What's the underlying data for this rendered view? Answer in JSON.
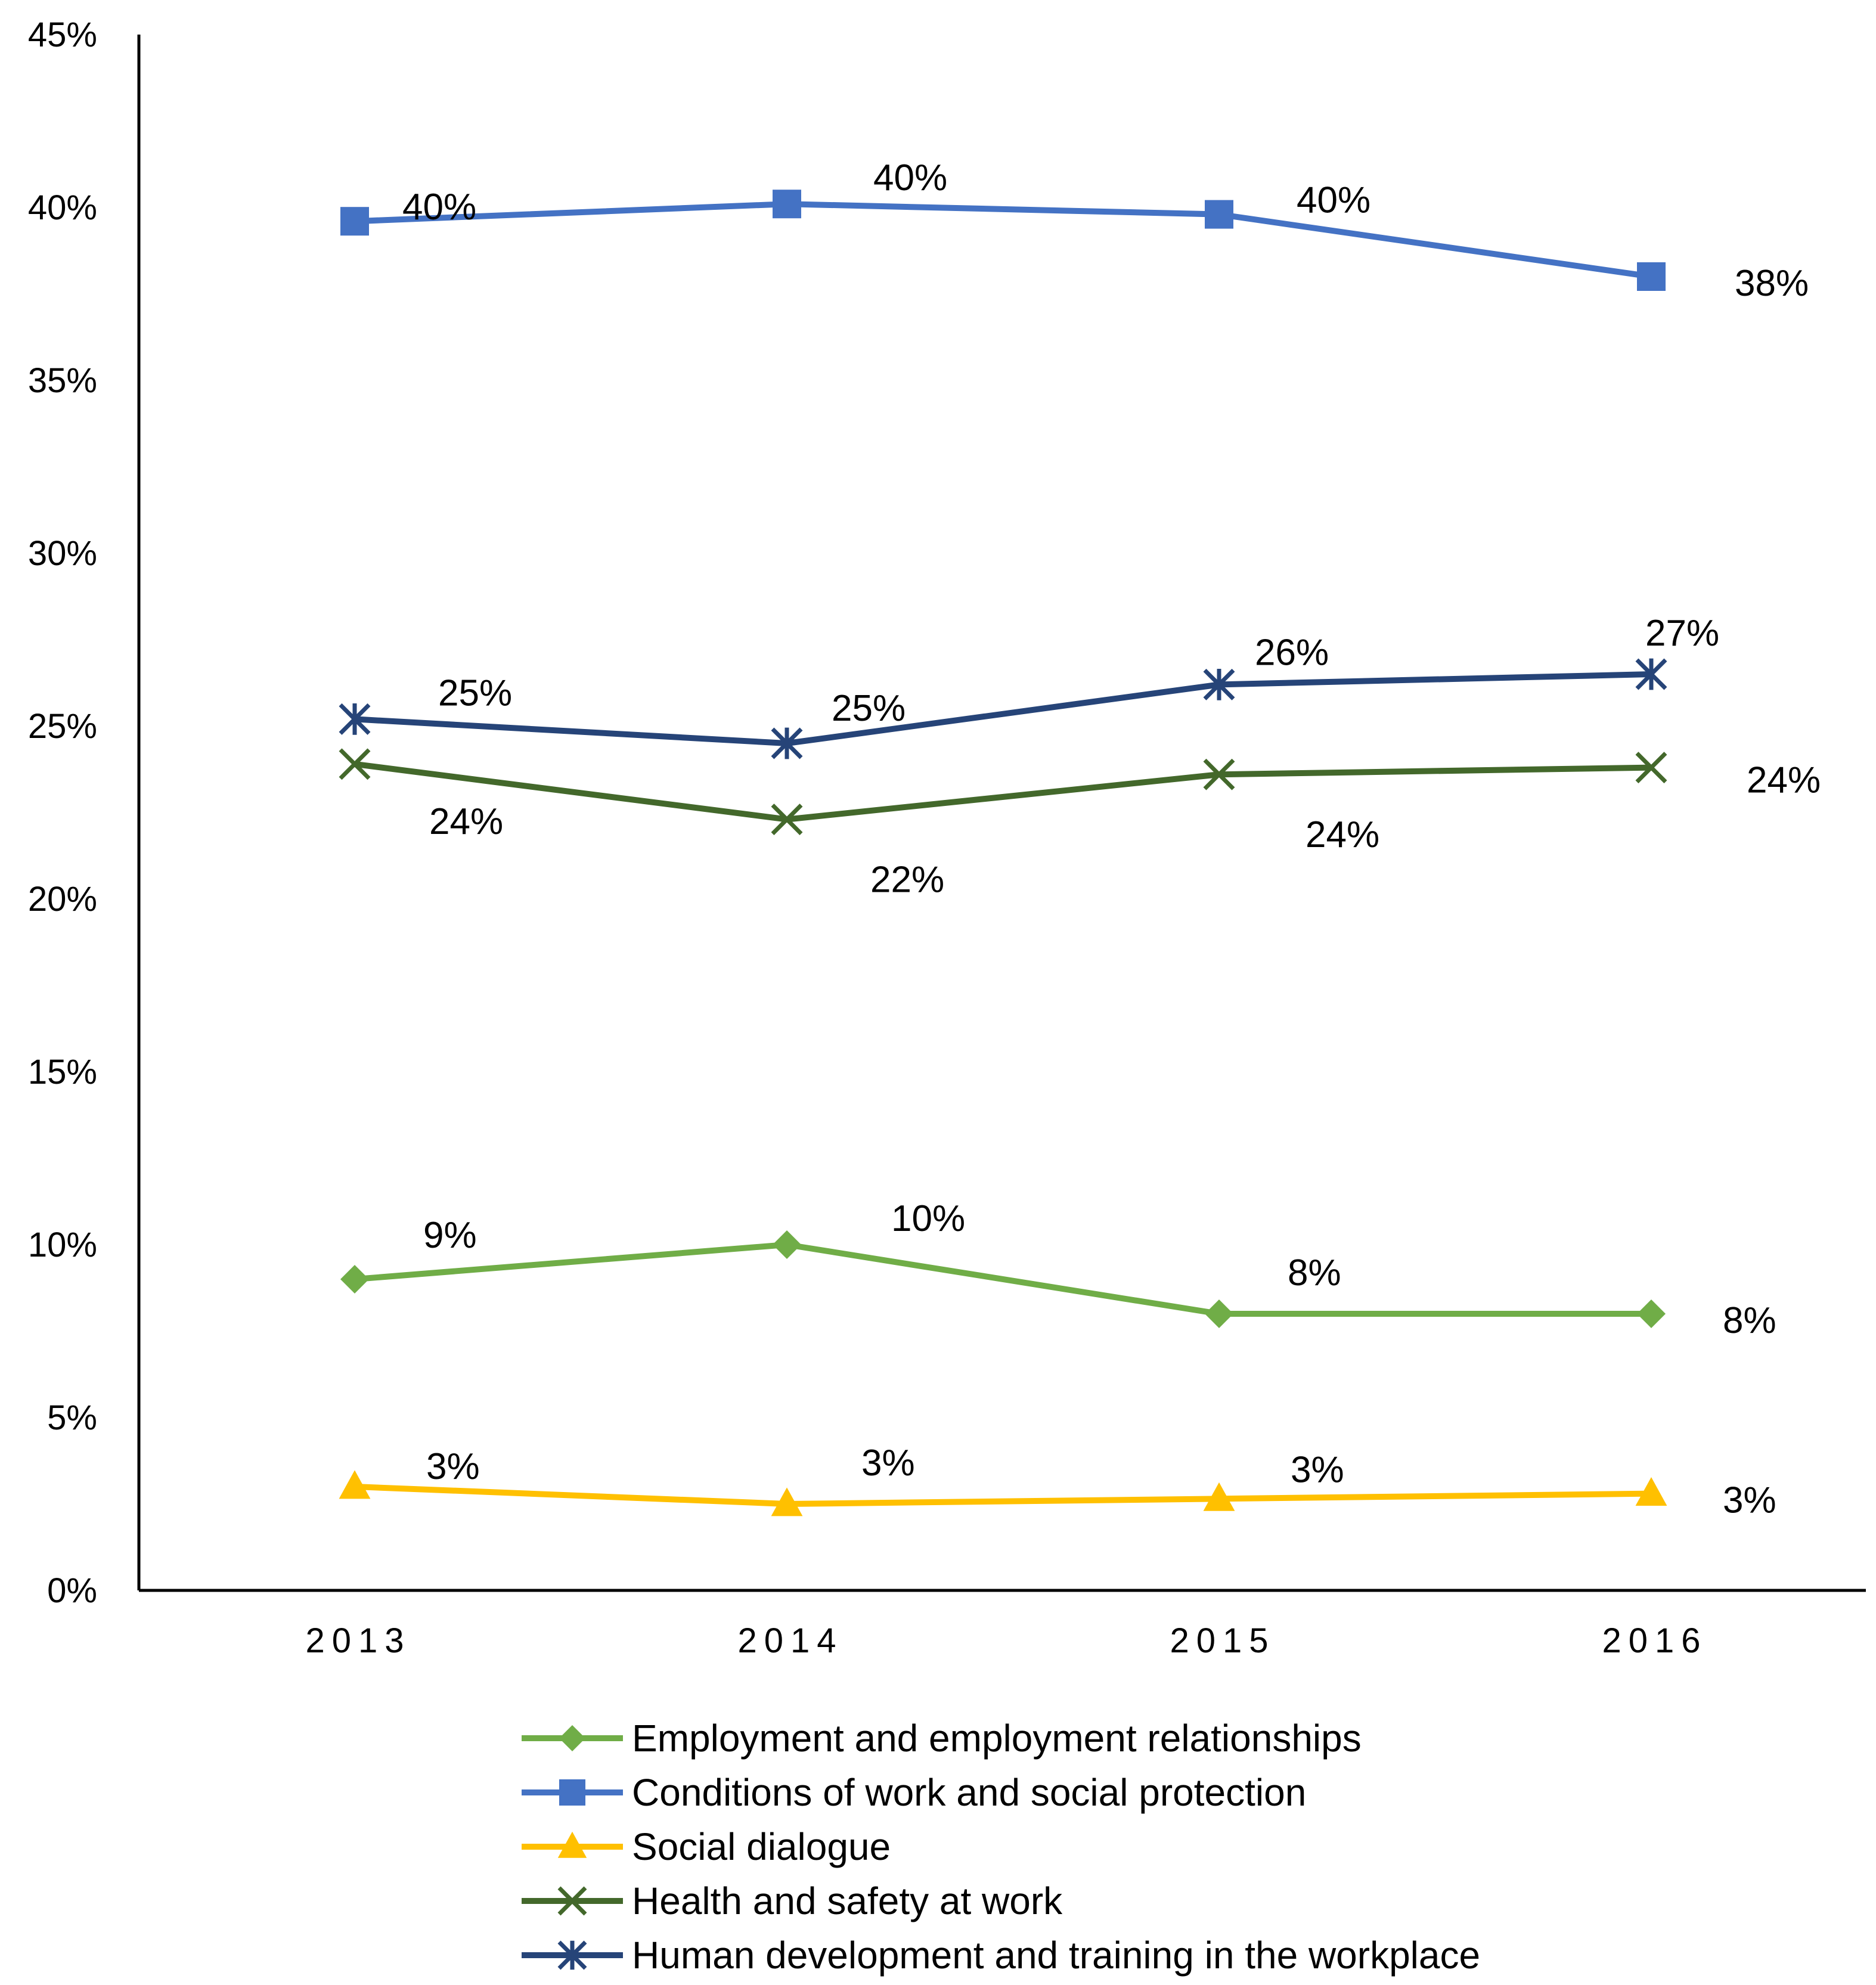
{
  "chart_data": {
    "type": "line",
    "title": "",
    "xlabel": "",
    "ylabel": "",
    "x": [
      "2013",
      "2014",
      "2015",
      "2016"
    ],
    "ylim": [
      0,
      45
    ],
    "yticks": [
      "0%",
      "5%",
      "10%",
      "15%",
      "20%",
      "25%",
      "30%",
      "35%",
      "40%",
      "45%"
    ],
    "grid": false,
    "legend_position": "bottom",
    "series": [
      {
        "name": "Employment and employment relationships",
        "color": "#70AD47",
        "marker": "diamond",
        "values": [
          9,
          10,
          8,
          8
        ],
        "labels": [
          "9%",
          "10%",
          "8%",
          "8%"
        ]
      },
      {
        "name": "Conditions of work and social protection",
        "color": "#4472C4",
        "marker": "square",
        "values": [
          39.6,
          40.1,
          39.8,
          38.0
        ],
        "labels": [
          "40%",
          "40%",
          "40%",
          "38%"
        ]
      },
      {
        "name": "Social dialogue",
        "color": "#FFC000",
        "marker": "triangle",
        "values": [
          3.0,
          2.5,
          2.65,
          2.8
        ],
        "labels": [
          "3%",
          "3%",
          "3%",
          "3%"
        ]
      },
      {
        "name": "Health and safety at work",
        "color": "#43682B",
        "marker": "x",
        "values": [
          23.9,
          22.3,
          23.6,
          23.8
        ],
        "labels": [
          "24%",
          "22%",
          "24%",
          "24%"
        ]
      },
      {
        "name": "Human development and training in the workplace",
        "color": "#264478",
        "marker": "star",
        "values": [
          25.2,
          24.5,
          26.2,
          26.5
        ],
        "labels": [
          "25%",
          "25%",
          "26%",
          "27%"
        ]
      }
    ]
  }
}
